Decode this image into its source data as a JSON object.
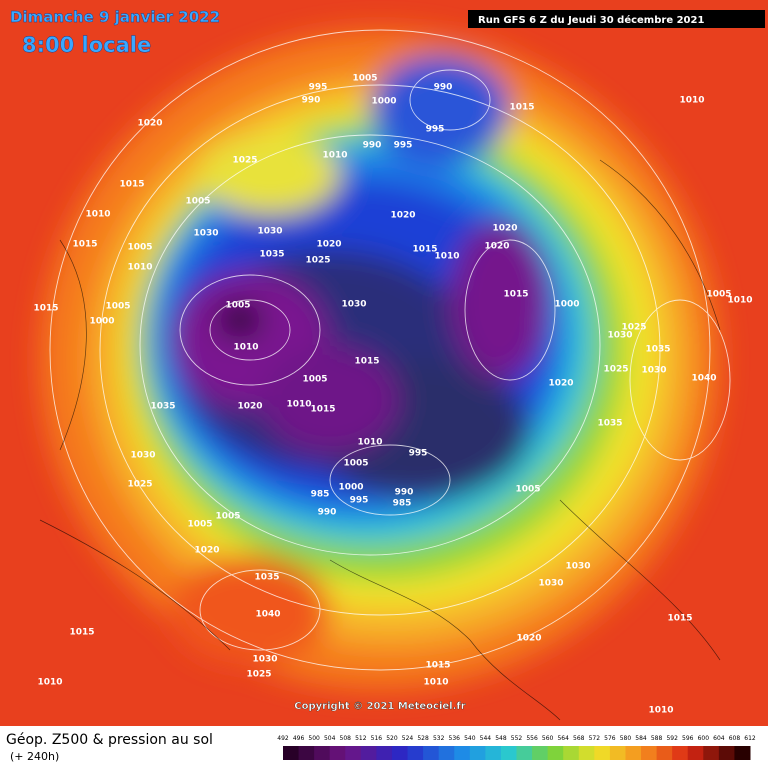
{
  "header": {
    "title": "Dimanche 9 janvier 2022",
    "time": "8:00 locale"
  },
  "run": "Run GFS 6 Z du Jeudi 30 décembre 2021",
  "copyright": "Copyright © 2021 Meteociel.fr",
  "footer": {
    "title": "Géop. Z500 & pression au sol",
    "lead": "(+ 240h)"
  },
  "map": {
    "pressure_labels": [
      995,
      990,
      1005,
      1000,
      990,
      995,
      1015,
      1010,
      1020,
      990,
      995,
      1010,
      1025,
      1015,
      1005,
      1010,
      1030,
      1030,
      1020,
      1020,
      1015,
      1005,
      1035,
      1025,
      1020,
      1015,
      1010,
      1020,
      1010,
      1015,
      1005,
      1005,
      1030,
      1015,
      1000,
      1000,
      1005,
      1010,
      1025,
      1030,
      1010,
      1035,
      1015,
      1005,
      1020,
      1025,
      1030,
      1040,
      1035,
      1020,
      1010,
      1015,
      1035,
      1010,
      995,
      1005,
      1030,
      1000,
      985,
      995,
      990,
      985,
      990,
      1005,
      1025,
      1005,
      1005,
      1020,
      1030,
      1035,
      1030,
      1040,
      1015,
      1015,
      1020,
      1030,
      1025,
      1015,
      1010,
      1010,
      1010
    ]
  },
  "legend": {
    "levels": [
      492,
      496,
      500,
      504,
      508,
      512,
      516,
      520,
      524,
      528,
      532,
      536,
      540,
      544,
      548,
      552,
      556,
      560,
      564,
      568,
      572,
      576,
      580,
      584,
      588,
      592,
      596,
      600,
      604,
      608,
      612
    ]
  }
}
